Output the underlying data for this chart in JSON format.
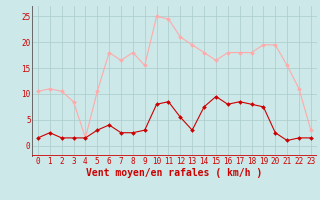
{
  "hours": [
    0,
    1,
    2,
    3,
    4,
    5,
    6,
    7,
    8,
    9,
    10,
    11,
    12,
    13,
    14,
    15,
    16,
    17,
    18,
    19,
    20,
    21,
    22,
    23
  ],
  "wind_avg": [
    1.5,
    2.5,
    1.5,
    1.5,
    1.5,
    3.0,
    4.0,
    2.5,
    2.5,
    3.0,
    8.0,
    8.5,
    5.5,
    3.0,
    7.5,
    9.5,
    8.0,
    8.5,
    8.0,
    7.5,
    2.5,
    1.0,
    1.5,
    1.5
  ],
  "wind_gust": [
    10.5,
    11.0,
    10.5,
    8.5,
    1.5,
    10.5,
    18.0,
    16.5,
    18.0,
    15.5,
    25.0,
    24.5,
    21.0,
    19.5,
    18.0,
    16.5,
    18.0,
    18.0,
    18.0,
    19.5,
    19.5,
    15.5,
    11.0,
    3.0
  ],
  "avg_color": "#cc0000",
  "gust_color": "#ffaaaa",
  "bg_color": "#cce8e8",
  "grid_color": "#aacccc",
  "xlabel": "Vent moyen/en rafales ( km/h )",
  "xlabel_color": "#cc0000",
  "xlabel_fontsize": 7,
  "ytick_labels": [
    "0",
    "5",
    "10",
    "15",
    "20",
    "25"
  ],
  "ytick_vals": [
    0,
    5,
    10,
    15,
    20,
    25
  ],
  "ylim": [
    -2,
    27
  ],
  "xlim": [
    -0.5,
    23.5
  ],
  "marker": "D",
  "markersize": 2,
  "linewidth": 0.8,
  "tick_fontsize": 5.5,
  "bottom_line_color": "#cc0000"
}
